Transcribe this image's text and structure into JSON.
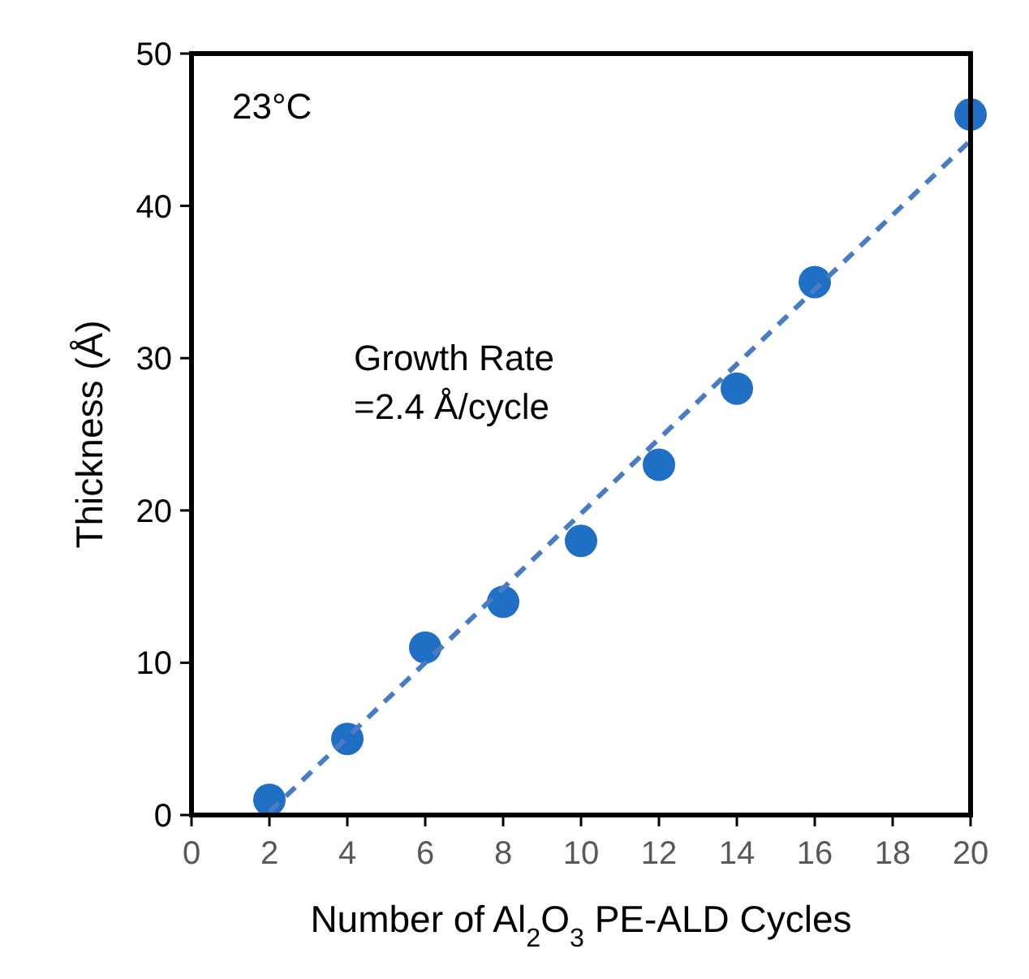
{
  "chart_data": {
    "type": "scatter",
    "xlabel": "Number of Al$_{2}$O$_{3}$ PE-ALD Cycles",
    "ylabel": "Thickness (Å)",
    "x": [
      2,
      4,
      6,
      8,
      10,
      12,
      14,
      16,
      20
    ],
    "xlim": [
      0,
      20
    ],
    "xticks": [
      0,
      2,
      4,
      6,
      8,
      10,
      12,
      14,
      16,
      18,
      20
    ],
    "ylim": [
      0,
      50
    ],
    "yticks": [
      0,
      10,
      20,
      30,
      40,
      50
    ],
    "grid": false,
    "marker": "circle",
    "series": [
      {
        "color": "#1f6fc5",
        "values": [
          1,
          5,
          11,
          14,
          18,
          23,
          28,
          35,
          46
        ]
      },
      {
        "type": "line",
        "color": "#4a7cc4",
        "line_style": "dashed",
        "marker": "none",
        "x": [
          2,
          20
        ],
        "values": [
          0.2,
          44.3
        ]
      }
    ],
    "annotations": [
      "23°C",
      "Growth Rate\n=2.4 Å/cycle"
    ]
  }
}
